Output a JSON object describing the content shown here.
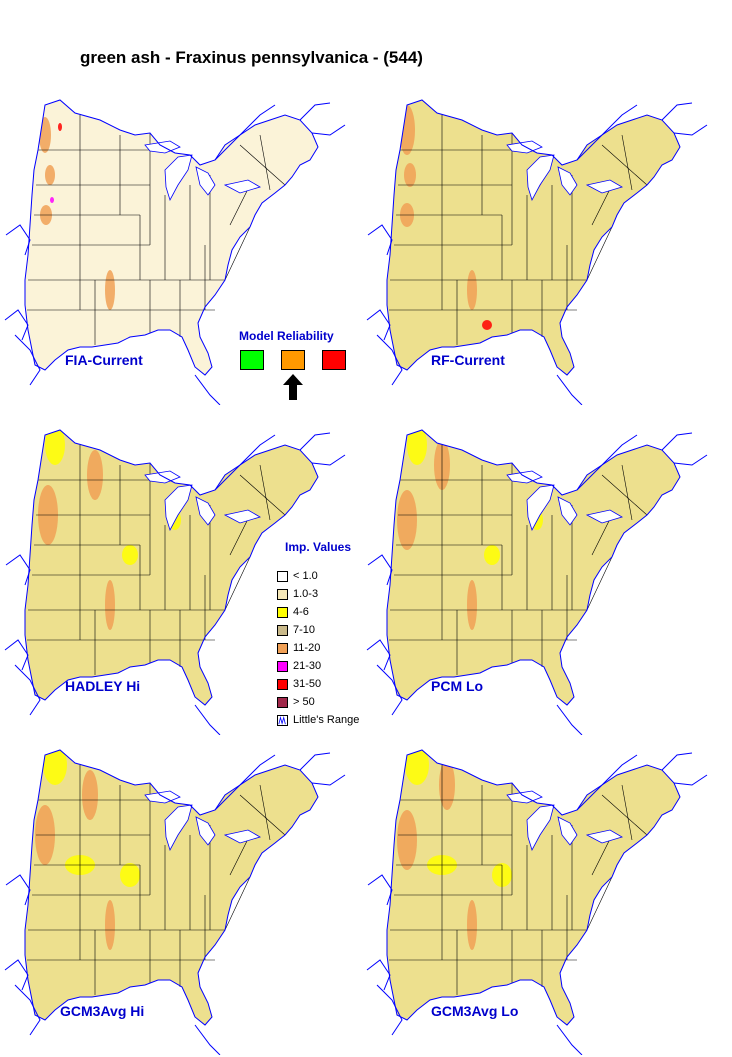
{
  "title": "green ash - Fraxinus pennsylvanica - (544)",
  "colors": {
    "lt1": "#ffffff",
    "v1_3": "#f6e8b8",
    "v4_6": "#ffff00",
    "v7_10": "#ede08e",
    "v11_20": "#f0a056",
    "v21_30": "#ff00ff",
    "v31_50": "#ff0000",
    "gt50": "#a0284a",
    "boundary": "#000000",
    "coast": "#0000ff",
    "label": "#0000cc"
  },
  "maps": [
    {
      "id": "fia-current",
      "label": "FIA-Current"
    },
    {
      "id": "rf-current",
      "label": "RF-Current"
    },
    {
      "id": "hadley-hi",
      "label": "HADLEY Hi"
    },
    {
      "id": "pcm-lo",
      "label": "PCM Lo"
    },
    {
      "id": "gcm3avg-hi",
      "label": "GCM3Avg Hi"
    },
    {
      "id": "gcm3avg-lo",
      "label": "GCM3Avg Lo"
    }
  ],
  "reliability": {
    "title": "Model Reliability",
    "levels": [
      {
        "color": "#00ff00"
      },
      {
        "color": "#ff9900"
      },
      {
        "color": "#ff0000"
      }
    ],
    "selected": 1
  },
  "legend": {
    "title": "Imp. Values",
    "items": [
      {
        "label": "< 1.0",
        "color": "#ffffff"
      },
      {
        "label": "1.0-3",
        "color": "#f6e8b8"
      },
      {
        "label": "4-6",
        "color": "#ffff00"
      },
      {
        "label": "7-10",
        "color": "#c9b98a"
      },
      {
        "label": "11-20",
        "color": "#f0a056"
      },
      {
        "label": "21-30",
        "color": "#ff00ff"
      },
      {
        "label": "31-50",
        "color": "#ff0000"
      },
      {
        "label": "> 50",
        "color": "#a0284a"
      },
      {
        "label": "Little's Range",
        "color": "range-icon"
      }
    ]
  }
}
